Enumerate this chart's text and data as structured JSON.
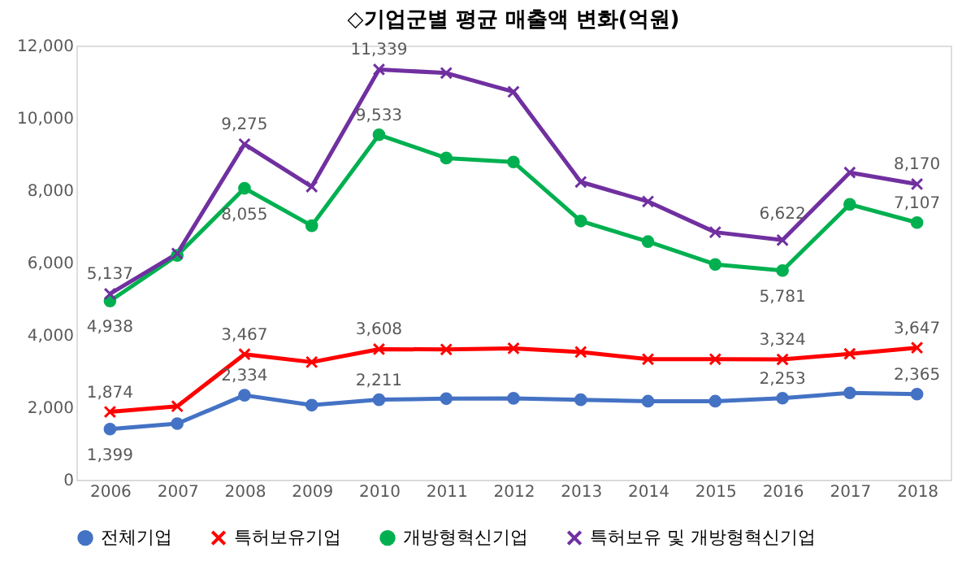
{
  "chart_data": {
    "type": "line",
    "title": "◇기업군별 평균 매출액 변화(억원)",
    "categories": [
      "2006",
      "2007",
      "2008",
      "2009",
      "2010",
      "2011",
      "2012",
      "2013",
      "2014",
      "2015",
      "2016",
      "2017",
      "2018"
    ],
    "ylim": [
      0,
      12000
    ],
    "yticks": [
      {
        "value": 0,
        "label": "0"
      },
      {
        "value": 2000,
        "label": "2,000"
      },
      {
        "value": 4000,
        "label": "4,000"
      },
      {
        "value": 6000,
        "label": "6,000"
      },
      {
        "value": 8000,
        "label": "8,000"
      },
      {
        "value": 10000,
        "label": "10,000"
      },
      {
        "value": 12000,
        "label": "12,000"
      }
    ],
    "grid": false,
    "legend": "bottom",
    "line_style": "solid",
    "series": [
      {
        "name": "전체기업",
        "color": "#4472c4",
        "marker": "circle",
        "values": [
          1399,
          1550,
          2334,
          2060,
          2211,
          2240,
          2250,
          2210,
          2170,
          2170,
          2253,
          2400,
          2365
        ],
        "value_labels": [
          "1,399",
          null,
          "2,334",
          null,
          "2,211",
          null,
          null,
          null,
          null,
          null,
          "2,253",
          null,
          "2,365"
        ]
      },
      {
        "name": "특허보유기업",
        "color": "#ff0000",
        "marker": "cross",
        "values": [
          1874,
          2030,
          3467,
          3250,
          3608,
          3600,
          3630,
          3530,
          3330,
          3330,
          3324,
          3480,
          3647
        ],
        "value_labels": [
          "1,874",
          null,
          "3,467",
          null,
          "3,608",
          null,
          null,
          null,
          null,
          null,
          "3,324",
          null,
          "3,647"
        ]
      },
      {
        "name": "개방형혁신기업",
        "color": "#00b050",
        "marker": "circle",
        "values": [
          4938,
          6200,
          8055,
          7020,
          9533,
          8890,
          8780,
          7150,
          6580,
          5950,
          5781,
          7610,
          7107
        ],
        "value_labels": [
          "4,938",
          null,
          "8,055",
          null,
          "9,533",
          null,
          null,
          null,
          null,
          null,
          "5,781",
          null,
          "7,107"
        ]
      },
      {
        "name": "특허보유 및 개방형혁신기업",
        "color": "#7030a0",
        "marker": "cross",
        "values": [
          5137,
          6250,
          9275,
          8100,
          11339,
          11240,
          10720,
          8230,
          7690,
          6840,
          6622,
          8490,
          8170
        ],
        "value_labels": [
          "5,137",
          null,
          "9,275",
          null,
          "11,339",
          null,
          null,
          null,
          null,
          null,
          "6,622",
          null,
          "8,170"
        ]
      }
    ]
  }
}
